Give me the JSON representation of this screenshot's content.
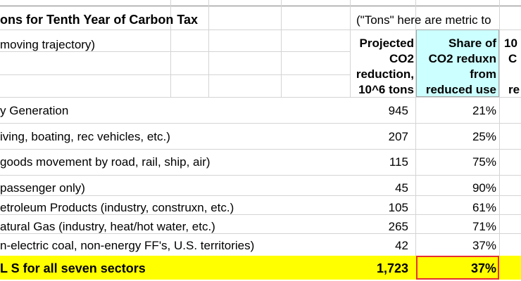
{
  "title": "ons for Tenth Year of Carbon Tax",
  "title_note": "(\"Tons\" here are metric to",
  "subtitle": "moving trajectory)",
  "columns": {
    "projected": [
      "Projected",
      "CO2",
      "reduction,",
      "10^6 tons"
    ],
    "share": [
      "Share of",
      "CO2 reduxn",
      "from",
      "reduced use"
    ],
    "partial": [
      "10",
      "C",
      "",
      "re"
    ]
  },
  "rows": [
    {
      "label": "y Generation",
      "projected": "945",
      "share": "21%"
    },
    {
      "label": "iving, boating, rec vehicles, etc.)",
      "projected": "207",
      "share": "25%"
    },
    {
      "label": "goods movement by road, rail, ship, air)",
      "projected": "115",
      "share": "75%"
    },
    {
      "label": "passenger only)",
      "projected": "45",
      "share": "90%"
    },
    {
      "label": "etroleum Products (industry, construxn, etc.)",
      "projected": "105",
      "share": "61%"
    },
    {
      "label": "atural Gas (industry, heat/hot water, etc.)",
      "projected": "265",
      "share": "71%"
    },
    {
      "label": "n-electric coal, non-energy FF's, U.S. territories)",
      "projected": "42",
      "share": "37%"
    }
  ],
  "total": {
    "label": "L S  for all seven sectors",
    "projected": "1,723",
    "share": "37%"
  }
}
